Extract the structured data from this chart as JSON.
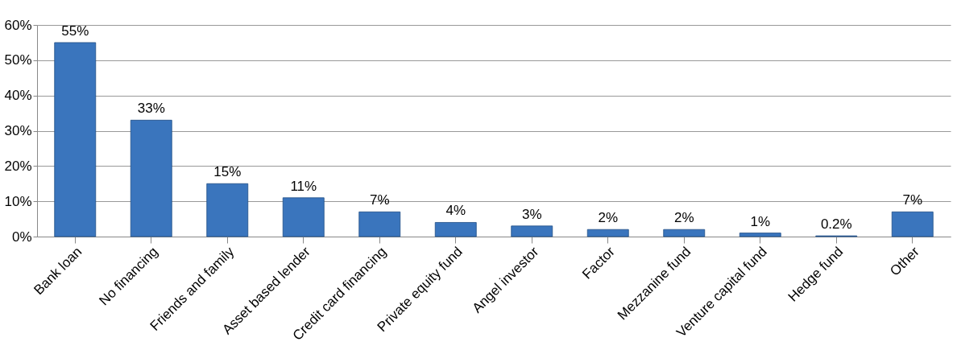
{
  "chart_data": {
    "type": "bar",
    "categories": [
      "Bank loan",
      "No financing",
      "Friends and family",
      "Asset based lender",
      "Credit card financing",
      "Private equity fund",
      "Angel investor",
      "Factor",
      "Mezzanine fund",
      "Venture capital fund",
      "Hedge fund",
      "Other"
    ],
    "values": [
      55,
      33,
      15,
      11,
      7,
      4,
      3,
      2,
      2,
      1,
      0.2,
      7
    ],
    "value_labels": [
      "55%",
      "33%",
      "15%",
      "11%",
      "7%",
      "4%",
      "3%",
      "2%",
      "2%",
      "1%",
      "0.2%",
      "7%"
    ],
    "color": "#3a75bd",
    "ylim": [
      0,
      60
    ],
    "yticks": [
      {
        "value": 0,
        "label": "0%"
      },
      {
        "value": 10,
        "label": "10%"
      },
      {
        "value": 20,
        "label": "20%"
      },
      {
        "value": 30,
        "label": "30%"
      },
      {
        "value": 40,
        "label": "40%"
      },
      {
        "value": 50,
        "label": "50%"
      },
      {
        "value": 60,
        "label": "60%"
      }
    ],
    "grid": "y"
  }
}
